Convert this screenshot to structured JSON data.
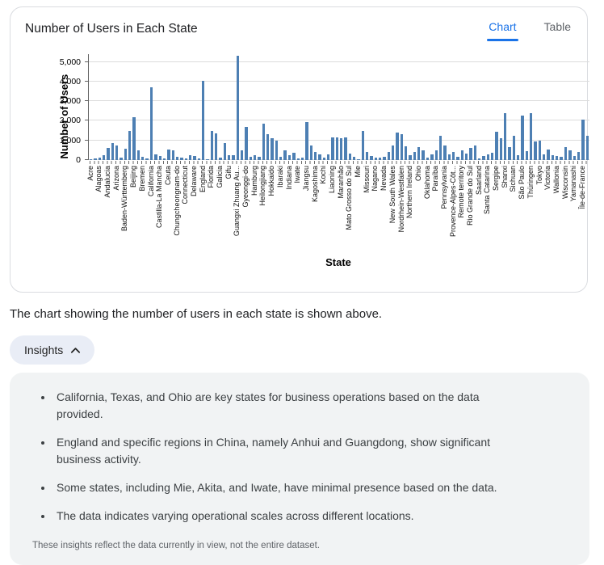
{
  "card": {
    "title": "Number of Users in Each State",
    "tabs": [
      {
        "label": "Chart",
        "active": true
      },
      {
        "label": "Table",
        "active": false
      }
    ]
  },
  "chart_data": {
    "type": "bar",
    "title": "Number of Users in Each State",
    "xlabel": "State",
    "ylabel": "Number of Users",
    "ylim": [
      0,
      5400
    ],
    "yticks": [
      0,
      1000,
      2000,
      3000,
      4000,
      5000
    ],
    "ytick_labels": [
      "0",
      "1,000",
      "2,000",
      "3,000",
      "4,000",
      "5,000"
    ],
    "grid": true,
    "bar_color": "#4d7fb3",
    "label_note": "x-axis labels every other bar, rotated 90 degrees; values are estimates read from pixels",
    "bars": [
      {
        "label": "Acre",
        "value": 60
      },
      {
        "label": "",
        "value": 90
      },
      {
        "label": "Alagoas",
        "value": 140
      },
      {
        "label": "",
        "value": 250
      },
      {
        "label": "Andalucia",
        "value": 620
      },
      {
        "label": "",
        "value": 860
      },
      {
        "label": "Arizona",
        "value": 730
      },
      {
        "label": "",
        "value": 130
      },
      {
        "label": "Baden-Württemberg",
        "value": 560
      },
      {
        "label": "",
        "value": 1480
      },
      {
        "label": "Beijing",
        "value": 2200
      },
      {
        "label": "",
        "value": 480
      },
      {
        "label": "Bremen",
        "value": 150
      },
      {
        "label": "",
        "value": 90
      },
      {
        "label": "California",
        "value": 3700
      },
      {
        "label": "",
        "value": 270
      },
      {
        "label": "Castilla-La Mancha",
        "value": 190
      },
      {
        "label": "",
        "value": 90
      },
      {
        "label": "Ceuta",
        "value": 550
      },
      {
        "label": "",
        "value": 500
      },
      {
        "label": "Chungcheongnam-do",
        "value": 150
      },
      {
        "label": "",
        "value": 120
      },
      {
        "label": "Connecticut",
        "value": 100
      },
      {
        "label": "",
        "value": 250
      },
      {
        "label": "Delaware",
        "value": 210
      },
      {
        "label": "",
        "value": 90
      },
      {
        "label": "England",
        "value": 4050
      },
      {
        "label": "",
        "value": 60
      },
      {
        "label": "Florida",
        "value": 1500
      },
      {
        "label": "",
        "value": 1350
      },
      {
        "label": "Galicia",
        "value": 110
      },
      {
        "label": "",
        "value": 850
      },
      {
        "label": "Gifu",
        "value": 250
      },
      {
        "label": "",
        "value": 250
      },
      {
        "label": "Guangxi Zhuang Au...",
        "value": 5300
      },
      {
        "label": "",
        "value": 500
      },
      {
        "label": "Gyeonggi-do",
        "value": 1700
      },
      {
        "label": "",
        "value": 180
      },
      {
        "label": "Hamburg",
        "value": 250
      },
      {
        "label": "",
        "value": 180
      },
      {
        "label": "Heilongjiang",
        "value": 1850
      },
      {
        "label": "",
        "value": 1300
      },
      {
        "label": "Hokkaido",
        "value": 1100
      },
      {
        "label": "",
        "value": 980
      },
      {
        "label": "Ibaraki",
        "value": 150
      },
      {
        "label": "",
        "value": 480
      },
      {
        "label": "Indiana",
        "value": 250
      },
      {
        "label": "",
        "value": 390
      },
      {
        "label": "Iwate",
        "value": 80
      },
      {
        "label": "",
        "value": 120
      },
      {
        "label": "Jiangsu",
        "value": 1950
      },
      {
        "label": "",
        "value": 750
      },
      {
        "label": "Kagoshima",
        "value": 420
      },
      {
        "label": "",
        "value": 280
      },
      {
        "label": "Kochi",
        "value": 140
      },
      {
        "label": "",
        "value": 290
      },
      {
        "label": "Liaoning",
        "value": 1150
      },
      {
        "label": "",
        "value": 1150
      },
      {
        "label": "Maranhão",
        "value": 1100
      },
      {
        "label": "",
        "value": 1140
      },
      {
        "label": "Mato Grosso do Sul",
        "value": 340
      },
      {
        "label": "",
        "value": 170
      },
      {
        "label": "Mie",
        "value": 60
      },
      {
        "label": "",
        "value": 1480
      },
      {
        "label": "Missouri",
        "value": 420
      },
      {
        "label": "",
        "value": 200
      },
      {
        "label": "Nagano",
        "value": 110
      },
      {
        "label": "",
        "value": 140
      },
      {
        "label": "Nevada",
        "value": 160
      },
      {
        "label": "",
        "value": 400
      },
      {
        "label": "New South Wales",
        "value": 750
      },
      {
        "label": "",
        "value": 1400
      },
      {
        "label": "Nordrhein-Westfalen",
        "value": 1340
      },
      {
        "label": "",
        "value": 700
      },
      {
        "label": "Northern Ireland",
        "value": 250
      },
      {
        "label": "",
        "value": 420
      },
      {
        "label": "Ohio",
        "value": 680
      },
      {
        "label": "",
        "value": 480
      },
      {
        "label": "Oklahoma",
        "value": 140
      },
      {
        "label": "",
        "value": 300
      },
      {
        "label": "Paraíba",
        "value": 480
      },
      {
        "label": "",
        "value": 1250
      },
      {
        "label": "Pennsylvania",
        "value": 750
      },
      {
        "label": "",
        "value": 300
      },
      {
        "label": "Provence-Alpes-Côt...",
        "value": 410
      },
      {
        "label": "",
        "value": 180
      },
      {
        "label": "Remote territory",
        "value": 480
      },
      {
        "label": "",
        "value": 340
      },
      {
        "label": "Rio Grande do Sul",
        "value": 620
      },
      {
        "label": "",
        "value": 750
      },
      {
        "label": "Saarland",
        "value": 80
      },
      {
        "label": "",
        "value": 200
      },
      {
        "label": "Santa Catarina",
        "value": 270
      },
      {
        "label": "",
        "value": 360
      },
      {
        "label": "Sergipe",
        "value": 1450
      },
      {
        "label": "",
        "value": 1130
      },
      {
        "label": "Shanxi",
        "value": 2400
      },
      {
        "label": "",
        "value": 650
      },
      {
        "label": "Sichuan",
        "value": 1250
      },
      {
        "label": "",
        "value": 250
      },
      {
        "label": "São Paulo",
        "value": 2250
      },
      {
        "label": "",
        "value": 450
      },
      {
        "label": "Thüringen",
        "value": 2400
      },
      {
        "label": "",
        "value": 950
      },
      {
        "label": "Tokyo",
        "value": 1000
      },
      {
        "label": "",
        "value": 300
      },
      {
        "label": "Victoria",
        "value": 550
      },
      {
        "label": "",
        "value": 250
      },
      {
        "label": "Wallonia",
        "value": 200
      },
      {
        "label": "",
        "value": 180
      },
      {
        "label": "Wisconsin",
        "value": 680
      },
      {
        "label": "",
        "value": 480
      },
      {
        "label": "Yamanashi",
        "value": 200
      },
      {
        "label": "",
        "value": 410
      },
      {
        "label": "Île-de-France",
        "value": 2050
      },
      {
        "label": "",
        "value": 1250
      }
    ]
  },
  "caption": "The chart showing the number of users in each state is shown above.",
  "insights": {
    "button_label": "Insights",
    "chevron": "up",
    "bullets": [
      "California, Texas, and Ohio are key states for business operations based on the data provided.",
      "England and specific regions in China, namely Anhui and Guangdong, show significant business activity.",
      "Some states, including Mie, Akita, and Iwate, have minimal presence based on the data.",
      "The data indicates varying operational scales across different locations."
    ],
    "footnote": "These insights reflect the data currently in view, not the entire dataset."
  },
  "colors": {
    "accent": "#1a73e8",
    "bar": "#4d7fb3",
    "card_border": "#dadce0",
    "panel_bg": "#f1f3f4",
    "button_bg": "#e9edf6",
    "muted_text": "#5f6368"
  }
}
